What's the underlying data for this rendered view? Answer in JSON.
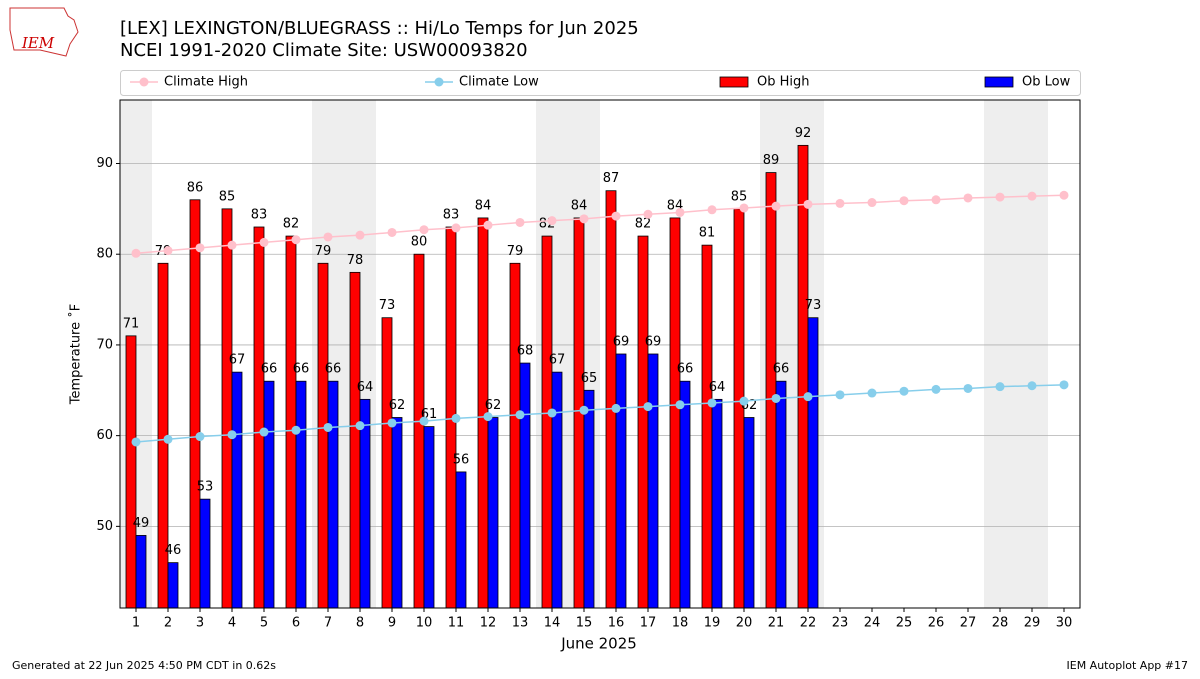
{
  "logo": "IEM",
  "footer": {
    "left": "Generated at 22 Jun 2025 4:50 PM CDT in 0.62s",
    "right": "IEM Autoplot App #17"
  },
  "chart_data": {
    "type": "bar",
    "title": "[LEX] LEXINGTON/BLUEGRASS :: Hi/Lo Temps for Jun 2025",
    "subtitle": "NCEI 1991-2020 Climate Site: USW00093820",
    "x_label": "June 2025",
    "y_label": "Temperature ˚F",
    "categories": [
      "1",
      "2",
      "3",
      "4",
      "5",
      "6",
      "7",
      "8",
      "9",
      "10",
      "11",
      "12",
      "13",
      "14",
      "15",
      "16",
      "17",
      "18",
      "19",
      "20",
      "21",
      "22",
      "23",
      "24",
      "25",
      "26",
      "27",
      "28",
      "29",
      "30"
    ],
    "ylim": [
      41,
      97
    ],
    "yticks": [
      50,
      60,
      70,
      80,
      90
    ],
    "grid": true,
    "series": [
      {
        "name": "Climate High",
        "type": "line",
        "color": "#ffc0cb",
        "values": [
          80.1,
          80.4,
          80.7,
          81.0,
          81.3,
          81.6,
          81.9,
          82.1,
          82.4,
          82.7,
          82.9,
          83.2,
          83.5,
          83.7,
          83.9,
          84.2,
          84.4,
          84.6,
          84.9,
          85.1,
          85.3,
          85.5,
          85.6,
          85.7,
          85.9,
          86.0,
          86.2,
          86.3,
          86.4,
          86.5
        ]
      },
      {
        "name": "Climate Low",
        "type": "line",
        "color": "#87ceeb",
        "values": [
          59.3,
          59.6,
          59.9,
          60.1,
          60.4,
          60.6,
          60.9,
          61.1,
          61.4,
          61.6,
          61.9,
          62.1,
          62.3,
          62.5,
          62.8,
          63.0,
          63.2,
          63.4,
          63.6,
          63.8,
          64.1,
          64.3,
          64.5,
          64.7,
          64.9,
          65.1,
          65.2,
          65.4,
          65.5,
          65.6
        ]
      },
      {
        "name": "Ob High",
        "type": "bar",
        "color": "#ff0000",
        "values": [
          71,
          79,
          86,
          85,
          83,
          82,
          79,
          78,
          73,
          80,
          83,
          84,
          79,
          82,
          84,
          87,
          82,
          84,
          81,
          85,
          89,
          92,
          null,
          null,
          null,
          null,
          null,
          null,
          null,
          null
        ]
      },
      {
        "name": "Ob Low",
        "type": "bar",
        "color": "#0000ff",
        "values": [
          49,
          46,
          53,
          67,
          66,
          66,
          66,
          64,
          62,
          61,
          56,
          62,
          68,
          67,
          65,
          69,
          69,
          66,
          64,
          62,
          66,
          73,
          null,
          null,
          null,
          null,
          null,
          null,
          null,
          null
        ]
      }
    ]
  }
}
